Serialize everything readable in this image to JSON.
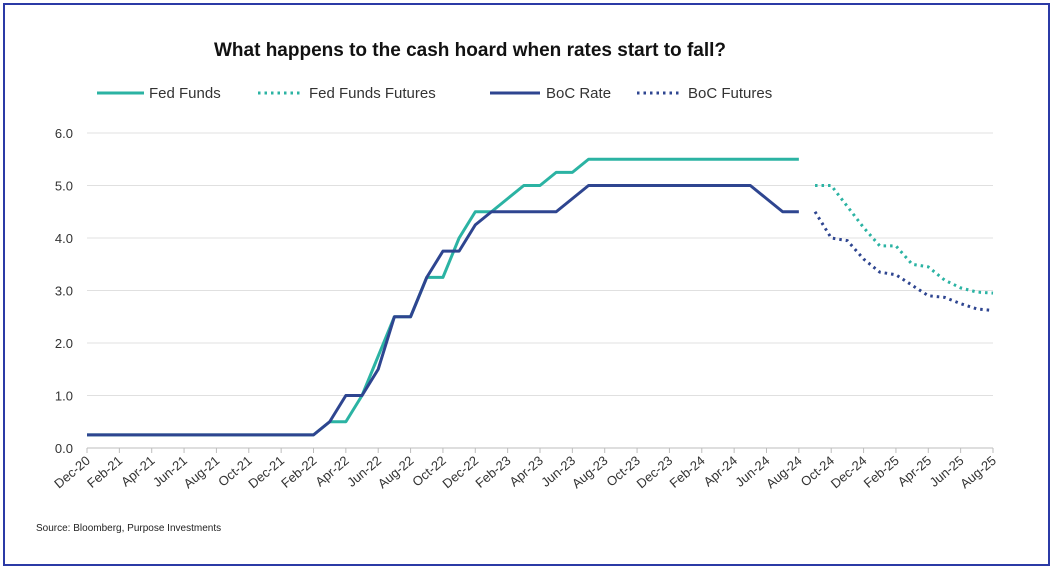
{
  "chart_data": {
    "type": "line",
    "title": "What happens to the cash hoard when rates start to fall?",
    "source": "Source: Bloomberg, Purpose Investments",
    "xlabel": "",
    "ylabel": "",
    "ylim": [
      0,
      6
    ],
    "yticks": [
      "0.0",
      "1.0",
      "2.0",
      "3.0",
      "4.0",
      "5.0",
      "6.0"
    ],
    "grid": true,
    "legend_position": "top",
    "x_tick_labels": [
      "Dec-20",
      "Feb-21",
      "Apr-21",
      "Jun-21",
      "Aug-21",
      "Oct-21",
      "Dec-21",
      "Feb-22",
      "Apr-22",
      "Jun-22",
      "Aug-22",
      "Oct-22",
      "Dec-22",
      "Feb-23",
      "Apr-23",
      "Jun-23",
      "Aug-23",
      "Oct-23",
      "Dec-23",
      "Feb-24",
      "Apr-24",
      "Jun-24",
      "Aug-24",
      "Oct-24",
      "Dec-24",
      "Feb-25",
      "Apr-25",
      "Jun-25",
      "Aug-25"
    ],
    "x_months": [
      "2020-12",
      "2021-01",
      "2021-02",
      "2021-03",
      "2021-04",
      "2021-05",
      "2021-06",
      "2021-07",
      "2021-08",
      "2021-09",
      "2021-10",
      "2021-11",
      "2021-12",
      "2022-01",
      "2022-02",
      "2022-03",
      "2022-04",
      "2022-05",
      "2022-06",
      "2022-07",
      "2022-08",
      "2022-09",
      "2022-10",
      "2022-11",
      "2022-12",
      "2023-01",
      "2023-02",
      "2023-03",
      "2023-04",
      "2023-05",
      "2023-06",
      "2023-07",
      "2023-08",
      "2023-09",
      "2023-10",
      "2023-11",
      "2023-12",
      "2024-01",
      "2024-02",
      "2024-03",
      "2024-04",
      "2024-05",
      "2024-06",
      "2024-07",
      "2024-08",
      "2024-09",
      "2024-10",
      "2024-11",
      "2024-12",
      "2025-01",
      "2025-02",
      "2025-03",
      "2025-04",
      "2025-05",
      "2025-06",
      "2025-07",
      "2025-08"
    ],
    "series": [
      {
        "name": "Fed Funds",
        "color": "#2bb3a3",
        "style": "solid",
        "x": [
          "2020-12",
          "2021-01",
          "2021-02",
          "2021-03",
          "2021-04",
          "2021-05",
          "2021-06",
          "2021-07",
          "2021-08",
          "2021-09",
          "2021-10",
          "2021-11",
          "2021-12",
          "2022-01",
          "2022-02",
          "2022-03",
          "2022-04",
          "2022-05",
          "2022-06",
          "2022-07",
          "2022-08",
          "2022-09",
          "2022-10",
          "2022-11",
          "2022-12",
          "2023-01",
          "2023-02",
          "2023-03",
          "2023-04",
          "2023-05",
          "2023-06",
          "2023-07",
          "2023-08",
          "2023-09",
          "2023-10",
          "2023-11",
          "2023-12",
          "2024-01",
          "2024-02",
          "2024-03",
          "2024-04",
          "2024-05",
          "2024-06",
          "2024-07",
          "2024-08"
        ],
        "values": [
          0.25,
          0.25,
          0.25,
          0.25,
          0.25,
          0.25,
          0.25,
          0.25,
          0.25,
          0.25,
          0.25,
          0.25,
          0.25,
          0.25,
          0.25,
          0.5,
          0.5,
          1.0,
          1.75,
          2.5,
          2.5,
          3.25,
          3.25,
          4.0,
          4.5,
          4.5,
          4.75,
          5.0,
          5.0,
          5.25,
          5.25,
          5.5,
          5.5,
          5.5,
          5.5,
          5.5,
          5.5,
          5.5,
          5.5,
          5.5,
          5.5,
          5.5,
          5.5,
          5.5,
          5.5
        ]
      },
      {
        "name": "Fed Funds Futures",
        "color": "#2bb3a3",
        "style": "dotted",
        "x": [
          "2024-09",
          "2024-10",
          "2024-11",
          "2024-12",
          "2025-01",
          "2025-02",
          "2025-03",
          "2025-04",
          "2025-05",
          "2025-06",
          "2025-07",
          "2025-08"
        ],
        "values": [
          5.0,
          5.0,
          4.6,
          4.2,
          3.85,
          3.85,
          3.5,
          3.45,
          3.2,
          3.05,
          2.97,
          2.95
        ]
      },
      {
        "name": "BoC Rate",
        "color": "#2e4590",
        "style": "solid",
        "x": [
          "2020-12",
          "2021-01",
          "2021-02",
          "2021-03",
          "2021-04",
          "2021-05",
          "2021-06",
          "2021-07",
          "2021-08",
          "2021-09",
          "2021-10",
          "2021-11",
          "2021-12",
          "2022-01",
          "2022-02",
          "2022-03",
          "2022-04",
          "2022-05",
          "2022-06",
          "2022-07",
          "2022-08",
          "2022-09",
          "2022-10",
          "2022-11",
          "2022-12",
          "2023-01",
          "2023-02",
          "2023-03",
          "2023-04",
          "2023-05",
          "2023-06",
          "2023-07",
          "2023-08",
          "2023-09",
          "2023-10",
          "2023-11",
          "2023-12",
          "2024-01",
          "2024-02",
          "2024-03",
          "2024-04",
          "2024-05",
          "2024-06",
          "2024-07",
          "2024-08"
        ],
        "values": [
          0.25,
          0.25,
          0.25,
          0.25,
          0.25,
          0.25,
          0.25,
          0.25,
          0.25,
          0.25,
          0.25,
          0.25,
          0.25,
          0.25,
          0.25,
          0.5,
          1.0,
          1.0,
          1.5,
          2.5,
          2.5,
          3.25,
          3.75,
          3.75,
          4.25,
          4.5,
          4.5,
          4.5,
          4.5,
          4.5,
          4.75,
          5.0,
          5.0,
          5.0,
          5.0,
          5.0,
          5.0,
          5.0,
          5.0,
          5.0,
          5.0,
          5.0,
          4.75,
          4.5,
          4.5
        ]
      },
      {
        "name": "BoC Futures",
        "color": "#2e4590",
        "style": "dotted",
        "x": [
          "2024-09",
          "2024-10",
          "2024-11",
          "2024-12",
          "2025-01",
          "2025-02",
          "2025-03",
          "2025-04",
          "2025-05",
          "2025-06",
          "2025-07",
          "2025-08"
        ],
        "values": [
          4.5,
          4.0,
          3.95,
          3.6,
          3.35,
          3.3,
          3.1,
          2.9,
          2.87,
          2.75,
          2.65,
          2.62
        ]
      }
    ]
  }
}
